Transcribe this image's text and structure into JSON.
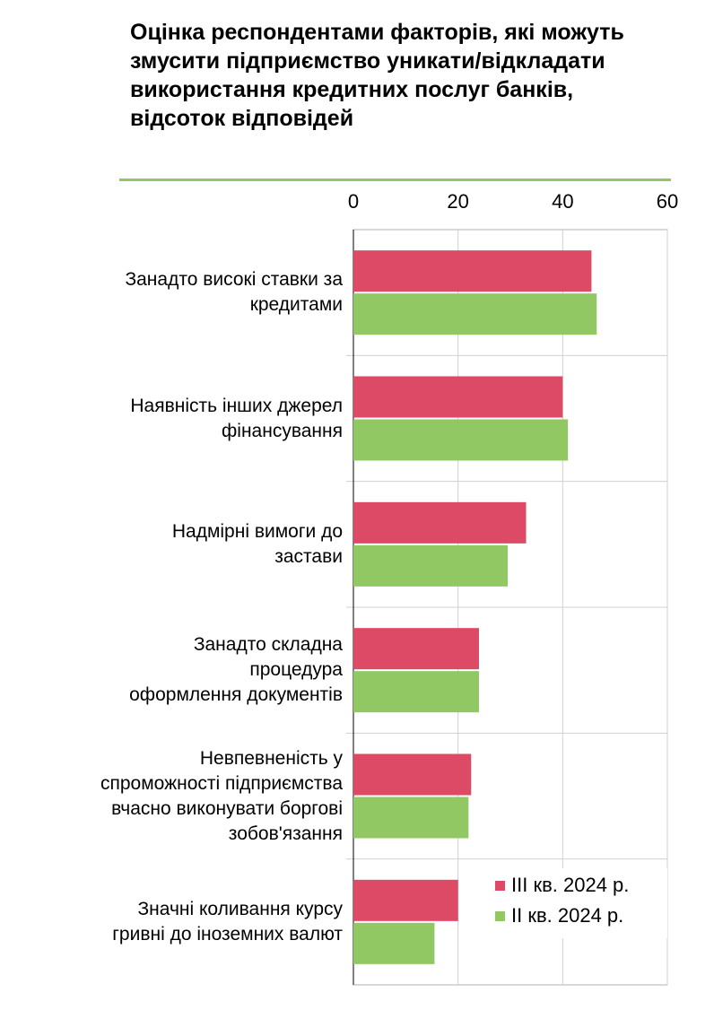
{
  "title": "Оцінка респондентами факторів, які можуть змусити підприємство уникати/відкладати використання кредитних послуг банків, відсоток відповідей",
  "chart_data": {
    "type": "bar",
    "orientation": "horizontal",
    "categories": [
      "Занадто високі ставки за кредитами",
      "Наявність інших джерел фінансування",
      "Надмірні вимоги до застави",
      "Занадто складна процедура оформлення документів",
      "Невпевненість у спроможності підприємства вчасно виконувати боргові зобов'язання",
      "Значні коливання курсу гривні до іноземних валют"
    ],
    "category_display": [
      "Занадто високі ставки за\nкредитами",
      "Наявність інших джерел\nфінансування",
      "Надмірні вимоги до\nзастави",
      "Занадто складна\nпроцедура\nоформлення документів",
      "Невпевненість у\nспроможності підприємства\nвчасно виконувати боргові\nзобов'язання",
      "Значні коливання курсу\nгривні до іноземних валют"
    ],
    "series": [
      {
        "name": "III кв. 2024 р.",
        "color": "#dc4a66",
        "values": [
          45.5,
          40,
          33,
          24,
          22.5,
          20
        ]
      },
      {
        "name": "II кв. 2024 р.",
        "color": "#92c864",
        "values": [
          46.5,
          41,
          29.5,
          24,
          22,
          15.5
        ]
      }
    ],
    "xlim": [
      0,
      60
    ],
    "xticks": [
      "0",
      "20",
      "40",
      "60"
    ],
    "grid": true,
    "legend_position": "bottom-right"
  }
}
